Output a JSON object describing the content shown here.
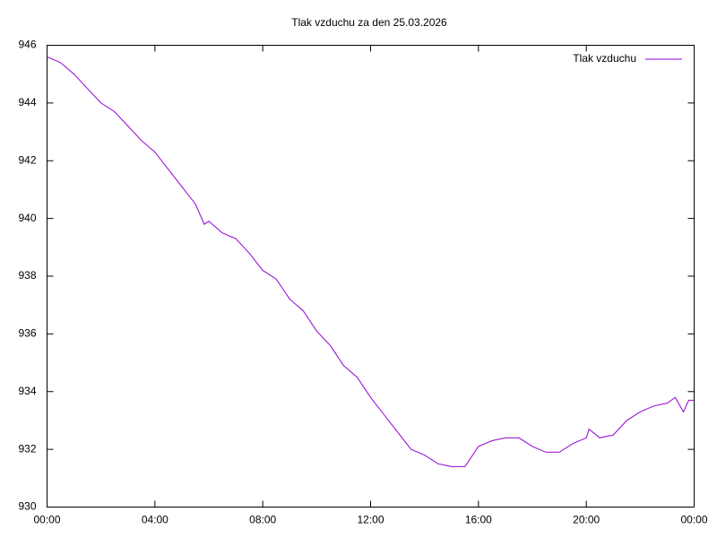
{
  "chart_data": {
    "type": "line",
    "title": "Tlak vzduchu za den 25.03.2026",
    "x": [
      0,
      0.5,
      1,
      1.5,
      2,
      2.5,
      3,
      3.5,
      4,
      4.5,
      5,
      5.5,
      5.83,
      6,
      6.5,
      7,
      7.5,
      8,
      8.5,
      9,
      9.5,
      10,
      10.5,
      11,
      11.5,
      12,
      12.5,
      13,
      13.5,
      14,
      14.5,
      15,
      15.5,
      16,
      16.5,
      17,
      17.5,
      18,
      18.5,
      19,
      19.5,
      20,
      20.1,
      20.5,
      21,
      21.5,
      22,
      22.5,
      23,
      23.3,
      23.6,
      23.8,
      24
    ],
    "series": [
      {
        "name": "Tlak vzduchu",
        "color": "#9400d3",
        "values": [
          945.6,
          945.4,
          945.0,
          944.5,
          944.0,
          943.7,
          943.2,
          942.7,
          942.3,
          941.7,
          941.1,
          940.5,
          939.8,
          939.9,
          939.5,
          939.3,
          938.8,
          938.2,
          937.9,
          937.2,
          936.8,
          936.1,
          935.6,
          934.9,
          934.5,
          933.8,
          933.2,
          932.6,
          932.0,
          931.8,
          931.5,
          931.4,
          931.4,
          932.1,
          932.3,
          932.4,
          932.4,
          932.1,
          931.9,
          931.9,
          932.2,
          932.4,
          932.7,
          932.4,
          932.5,
          933.0,
          933.3,
          933.5,
          933.6,
          933.8,
          933.3,
          933.7,
          933.7
        ]
      }
    ],
    "xlim": [
      0,
      24
    ],
    "xticks": [
      {
        "value": 0,
        "label": "00:00"
      },
      {
        "value": 4,
        "label": "04:00"
      },
      {
        "value": 8,
        "label": "08:00"
      },
      {
        "value": 12,
        "label": "12:00"
      },
      {
        "value": 16,
        "label": "16:00"
      },
      {
        "value": 20,
        "label": "20:00"
      },
      {
        "value": 24,
        "label": "00:00"
      }
    ],
    "ylim": [
      930,
      946
    ],
    "yticks": [
      930,
      932,
      934,
      936,
      938,
      940,
      942,
      944,
      946
    ],
    "legend": "top-right",
    "grid": false
  }
}
